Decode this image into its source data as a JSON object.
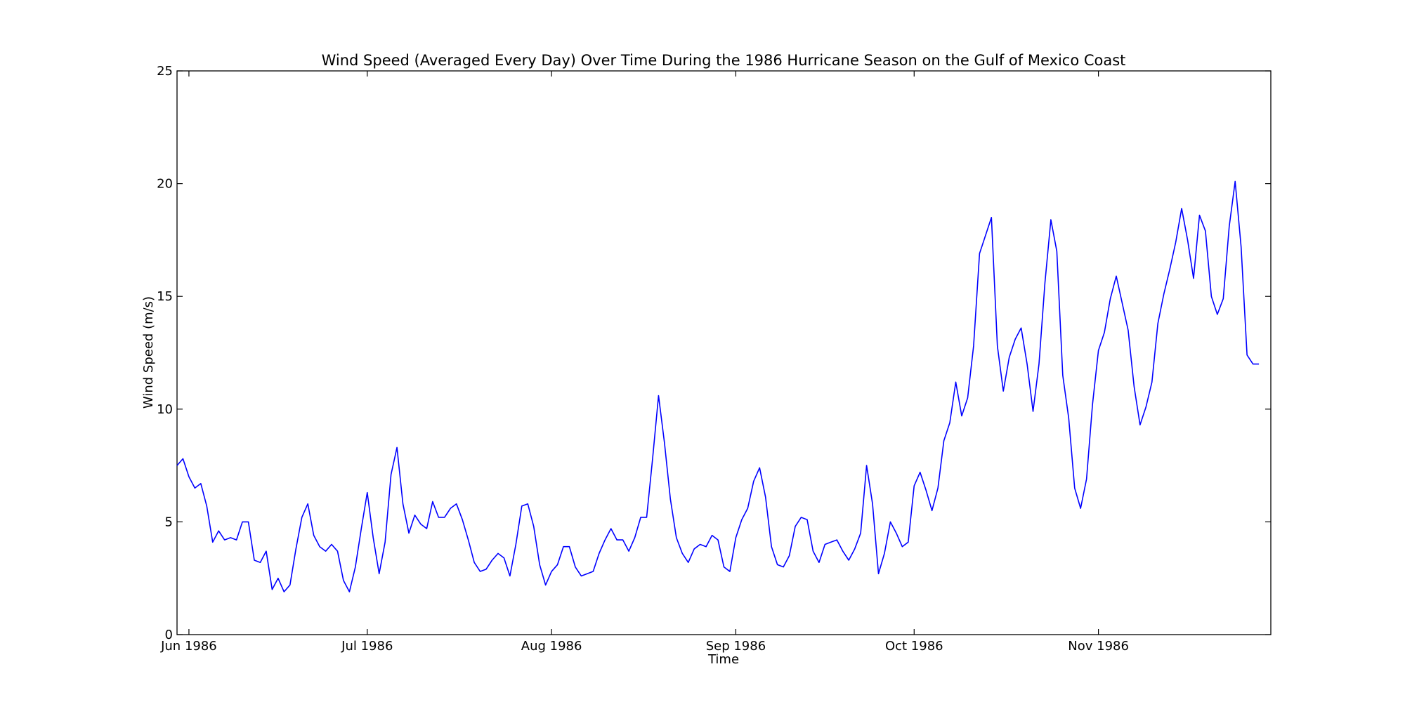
{
  "chart_data": {
    "type": "line",
    "title": "Wind Speed (Averaged Every Day) Over Time During the 1986 Hurricane Season on the Gulf of Mexico Coast",
    "xlabel": "Time",
    "ylabel": "Wind Speed (m/s)",
    "ylim": [
      0,
      25
    ],
    "xlim": [
      "1986-05-30",
      "1986-11-30"
    ],
    "yticks": [
      0,
      5,
      10,
      15,
      20,
      25
    ],
    "xticks": [
      {
        "date": "1986-06-01",
        "label": "Jun 1986"
      },
      {
        "date": "1986-07-01",
        "label": "Jul 1986"
      },
      {
        "date": "1986-08-01",
        "label": "Aug 1986"
      },
      {
        "date": "1986-09-01",
        "label": "Sep 1986"
      },
      {
        "date": "1986-10-01",
        "label": "Oct 1986"
      },
      {
        "date": "1986-11-01",
        "label": "Nov 1986"
      }
    ],
    "grid": false,
    "line_color": "#0000ff",
    "series": [
      {
        "start_date": "1986-05-30",
        "values": [
          7.5,
          7.8,
          7.0,
          6.5,
          6.7,
          5.7,
          4.1,
          4.6,
          4.2,
          4.3,
          4.2,
          5.0,
          5.0,
          3.3,
          3.2,
          3.7,
          2.0,
          2.5,
          1.9,
          2.2,
          3.8,
          5.2,
          5.8,
          4.4,
          3.9,
          3.7,
          4.0,
          3.7,
          2.4,
          1.9,
          3.0,
          4.7,
          6.3,
          4.3,
          2.7,
          4.1,
          7.1,
          8.3,
          5.8,
          4.5,
          5.3,
          4.9,
          4.7,
          5.9,
          5.2,
          5.2,
          5.6,
          5.8,
          5.1,
          4.2,
          3.2,
          2.8,
          2.9,
          3.3,
          3.6,
          3.4,
          2.6,
          4.0,
          5.7,
          5.8,
          4.8,
          3.1,
          2.2,
          2.8,
          3.1,
          3.9,
          3.9,
          3.0,
          2.6,
          2.7,
          2.8,
          3.6,
          4.2,
          4.7,
          4.2,
          4.2,
          3.7,
          4.3,
          5.2,
          5.2,
          7.8,
          10.6,
          8.5,
          6.0,
          4.3,
          3.6,
          3.2,
          3.8,
          4.0,
          3.9,
          4.4,
          4.2,
          3.0,
          2.8,
          4.3,
          5.1,
          5.6,
          6.8,
          7.4,
          6.1,
          3.9,
          3.1,
          3.0,
          3.5,
          4.8,
          5.2,
          5.1,
          3.7,
          3.2,
          4.0,
          4.1,
          4.2,
          3.7,
          3.3,
          3.8,
          4.5,
          7.5,
          5.8,
          2.7,
          3.6,
          5.0,
          4.5,
          3.9,
          4.1,
          6.6,
          7.2,
          6.4,
          5.5,
          6.5,
          8.6,
          9.4,
          11.2,
          9.7,
          10.5,
          12.8,
          16.9,
          17.7,
          18.5,
          12.8,
          10.8,
          12.3,
          13.1,
          13.6,
          12.0,
          9.9,
          12.0,
          15.6,
          18.4,
          17.0,
          11.5,
          9.6,
          6.5,
          5.6,
          6.9,
          10.2,
          12.6,
          13.4,
          14.9,
          15.9,
          14.7,
          13.5,
          11.0,
          9.3,
          10.1,
          11.2,
          13.8,
          15.1,
          16.2,
          17.4,
          18.9,
          17.5,
          15.8,
          18.6,
          17.9,
          15.0,
          14.2,
          14.9,
          18.1,
          20.1,
          17.2,
          12.4,
          12.0,
          12.0
        ]
      }
    ]
  }
}
